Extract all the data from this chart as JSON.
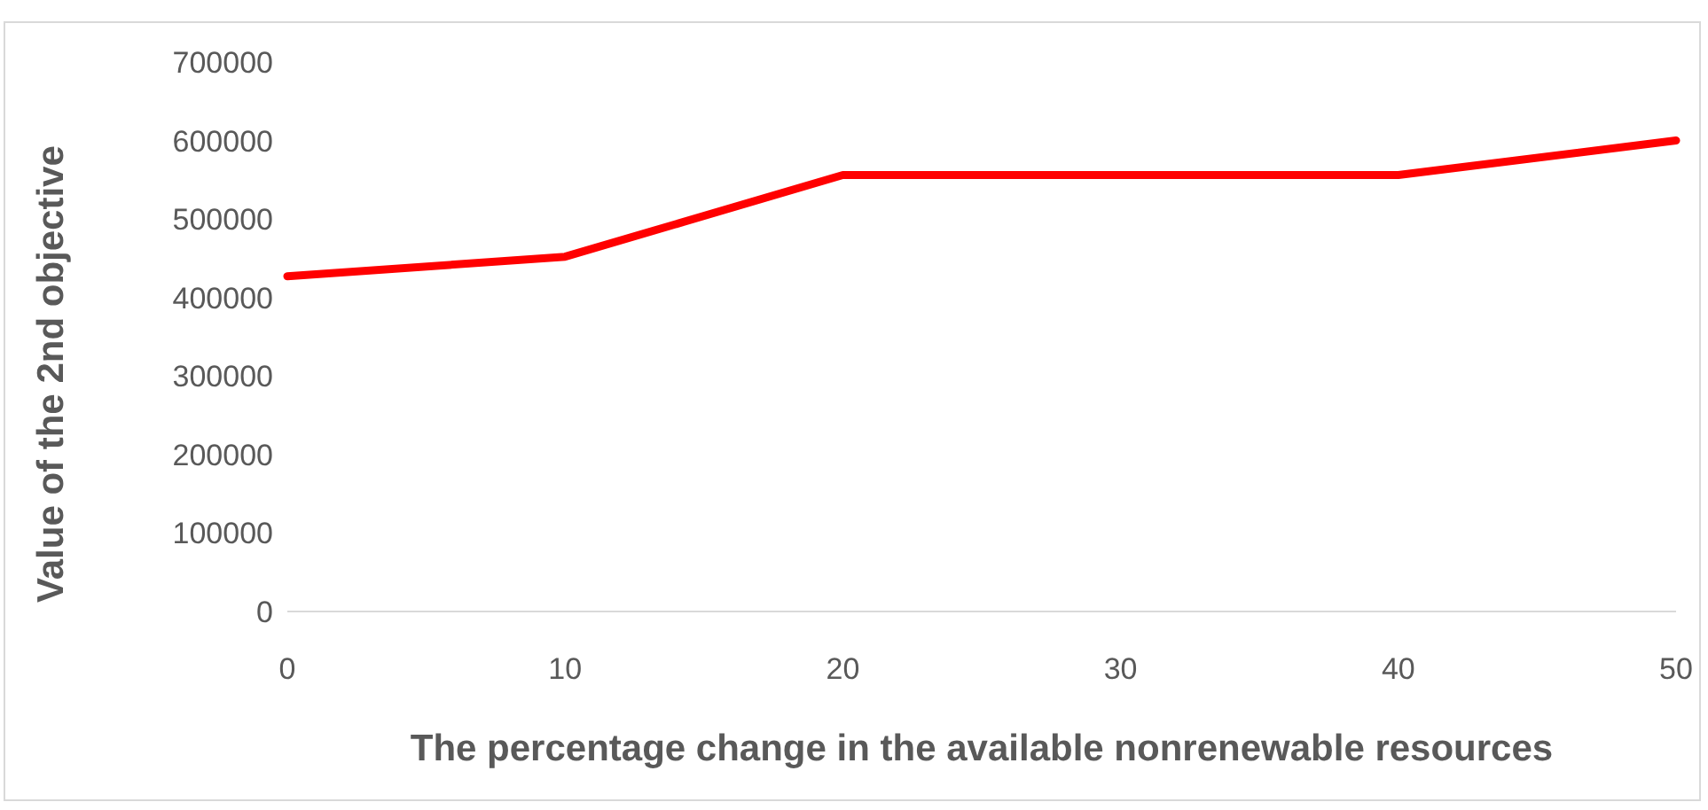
{
  "chart_data": {
    "type": "line",
    "xlabel": "The percentage change in the available nonrenewable resources",
    "ylabel": "Value of the 2nd objective",
    "categories": [
      "0",
      "10",
      "20",
      "30",
      "40",
      "50"
    ],
    "series": [
      {
        "color": "#ff0000",
        "values": [
          427000,
          452000,
          556000,
          556000,
          556000,
          600000
        ]
      }
    ],
    "ylim": [
      0,
      700000
    ],
    "yticks": [
      0,
      100000,
      200000,
      300000,
      400000,
      500000,
      600000,
      700000
    ],
    "grid": false,
    "legend": false,
    "marker": "none",
    "line_style": "solid"
  }
}
